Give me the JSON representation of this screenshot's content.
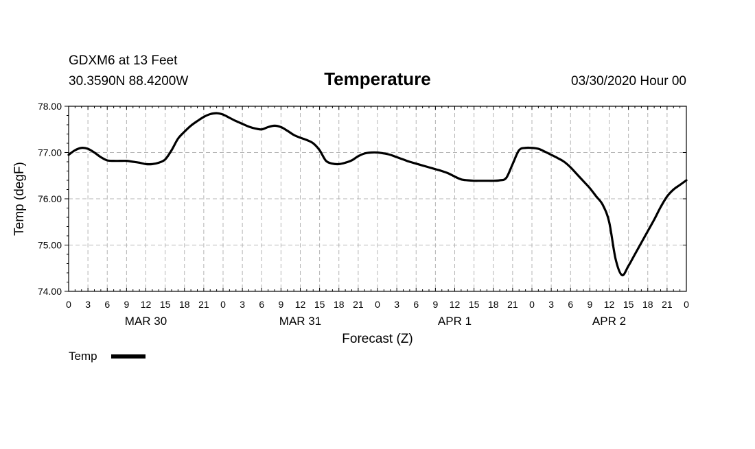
{
  "chart_data": {
    "type": "line",
    "station": "GDXM6 at 13 Feet",
    "location": "30.3590N 88.4200W",
    "title": "Temperature",
    "issued": "03/30/2020 Hour 00",
    "xlabel": "Forecast (Z)",
    "ylabel": "Temp (degF)",
    "ylim": [
      74.0,
      78.0
    ],
    "yticks": [
      "74.00",
      "75.00",
      "76.00",
      "77.00",
      "78.00"
    ],
    "xlim": [
      0,
      96
    ],
    "x_tick_labels": [
      "0",
      "3",
      "6",
      "9",
      "12",
      "15",
      "18",
      "21",
      "0",
      "3",
      "6",
      "9",
      "12",
      "15",
      "18",
      "21",
      "0",
      "3",
      "6",
      "9",
      "12",
      "15",
      "18",
      "21",
      "0",
      "3",
      "6",
      "9",
      "12",
      "15",
      "18",
      "21",
      "0"
    ],
    "day_labels": [
      "MAR 30",
      "MAR 31",
      "APR 1",
      "APR 2"
    ],
    "grid": true,
    "legend": [
      {
        "name": "Temp",
        "color": "#000000"
      }
    ],
    "series": [
      {
        "name": "Temp",
        "color": "#000000",
        "x": [
          0,
          1,
          2,
          3,
          4,
          5,
          6,
          7,
          8,
          9,
          10,
          11,
          12,
          13,
          14,
          15,
          16,
          17,
          18,
          19,
          20,
          21,
          22,
          23,
          24,
          25,
          26,
          27,
          28,
          29,
          30,
          31,
          32,
          33,
          34,
          35,
          36,
          37,
          38,
          39,
          40,
          41,
          42,
          43,
          44,
          45,
          46,
          47,
          48,
          49,
          50,
          51,
          52,
          53,
          54,
          55,
          56,
          57,
          58,
          59,
          60,
          61,
          62,
          63,
          64,
          65,
          66,
          67,
          68,
          69,
          70,
          71,
          72,
          73,
          74,
          75,
          76,
          77,
          78,
          79,
          80,
          81,
          82,
          83,
          84,
          85,
          86,
          87,
          88,
          89,
          90,
          91,
          92,
          93,
          94,
          95,
          96
        ],
        "values": [
          76.95,
          77.05,
          77.1,
          77.08,
          77.0,
          76.9,
          76.83,
          76.82,
          76.82,
          76.82,
          76.8,
          76.78,
          76.75,
          76.75,
          76.78,
          76.85,
          77.05,
          77.3,
          77.45,
          77.58,
          77.68,
          77.77,
          77.83,
          77.85,
          77.82,
          77.75,
          77.68,
          77.62,
          77.56,
          77.52,
          77.5,
          77.55,
          77.58,
          77.55,
          77.47,
          77.38,
          77.32,
          77.27,
          77.2,
          77.05,
          76.82,
          76.76,
          76.75,
          76.78,
          76.83,
          76.92,
          76.98,
          77.0,
          77.0,
          76.98,
          76.95,
          76.9,
          76.85,
          76.8,
          76.76,
          76.72,
          76.68,
          76.64,
          76.6,
          76.55,
          76.48,
          76.42,
          76.4,
          76.39,
          76.39,
          76.39,
          76.39,
          76.4,
          76.45,
          76.75,
          77.05,
          77.1,
          77.1,
          77.08,
          77.02,
          76.95,
          76.88,
          76.8,
          76.68,
          76.53,
          76.38,
          76.23,
          76.05,
          75.87,
          75.5,
          74.7,
          74.35,
          74.55,
          74.8,
          75.05,
          75.3,
          75.55,
          75.82,
          76.05,
          76.2,
          76.3,
          76.4
        ]
      }
    ]
  }
}
